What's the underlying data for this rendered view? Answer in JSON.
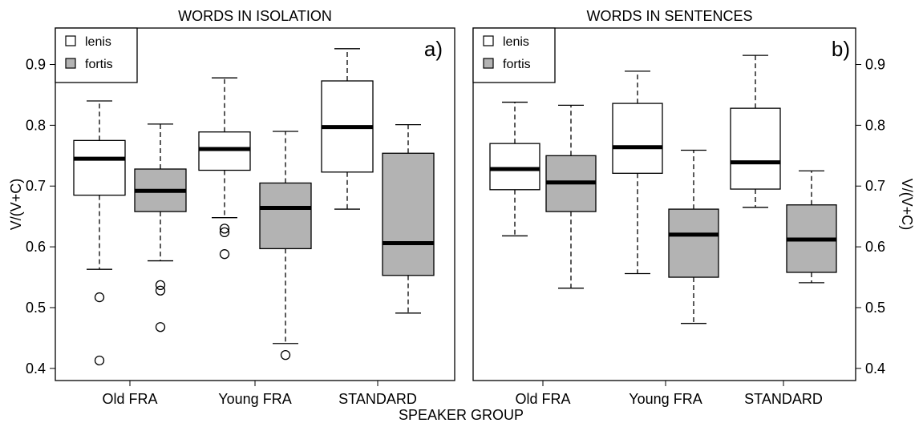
{
  "xlabel": "SPEAKER GROUP",
  "ylabel_left": "V/(V+C)",
  "ylabel_right": "V/(V+C)",
  "colors": {
    "lenis": "#ffffff",
    "fortis": "#b3b3b3"
  },
  "chart_data": [
    {
      "type": "boxplot",
      "title": "WORDS IN ISOLATION",
      "panel_label": "a)",
      "ylim": [
        0.38,
        0.96
      ],
      "yticks": [
        0.4,
        0.5,
        0.6,
        0.7,
        0.8,
        0.9
      ],
      "categories": [
        "Old FRA",
        "Young FRA",
        "STANDARD"
      ],
      "legend": {
        "position": "top-left",
        "entries": [
          "lenis",
          "fortis"
        ]
      },
      "boxes": [
        {
          "group": "Old FRA",
          "series": "lenis",
          "whisker_low": 0.563,
          "q1": 0.685,
          "median": 0.745,
          "q3": 0.775,
          "whisker_high": 0.84,
          "outliers": [
            0.517,
            0.413
          ]
        },
        {
          "group": "Old FRA",
          "series": "fortis",
          "whisker_low": 0.577,
          "q1": 0.658,
          "median": 0.692,
          "q3": 0.728,
          "whisker_high": 0.802,
          "outliers": [
            0.537,
            0.528,
            0.468
          ]
        },
        {
          "group": "Young FRA",
          "series": "lenis",
          "whisker_low": 0.648,
          "q1": 0.726,
          "median": 0.761,
          "q3": 0.789,
          "whisker_high": 0.878,
          "outliers": [
            0.63,
            0.624,
            0.588
          ]
        },
        {
          "group": "Young FRA",
          "series": "fortis",
          "whisker_low": 0.441,
          "q1": 0.597,
          "median": 0.664,
          "q3": 0.705,
          "whisker_high": 0.79,
          "outliers": [
            0.422
          ]
        },
        {
          "group": "STANDARD",
          "series": "lenis",
          "whisker_low": 0.662,
          "q1": 0.723,
          "median": 0.797,
          "q3": 0.873,
          "whisker_high": 0.926,
          "outliers": []
        },
        {
          "group": "STANDARD",
          "series": "fortis",
          "whisker_low": 0.491,
          "q1": 0.553,
          "median": 0.606,
          "q3": 0.754,
          "whisker_high": 0.801,
          "outliers": []
        }
      ]
    },
    {
      "type": "boxplot",
      "title": "WORDS IN SENTENCES",
      "panel_label": "b)",
      "ylim": [
        0.38,
        0.96
      ],
      "yticks": [
        0.4,
        0.5,
        0.6,
        0.7,
        0.8,
        0.9
      ],
      "categories": [
        "Old FRA",
        "Young FRA",
        "STANDARD"
      ],
      "legend": {
        "position": "top-left",
        "entries": [
          "lenis",
          "fortis"
        ]
      },
      "boxes": [
        {
          "group": "Old FRA",
          "series": "lenis",
          "whisker_low": 0.618,
          "q1": 0.694,
          "median": 0.728,
          "q3": 0.77,
          "whisker_high": 0.838,
          "outliers": []
        },
        {
          "group": "Old FRA",
          "series": "fortis",
          "whisker_low": 0.532,
          "q1": 0.658,
          "median": 0.706,
          "q3": 0.75,
          "whisker_high": 0.833,
          "outliers": []
        },
        {
          "group": "Young FRA",
          "series": "lenis",
          "whisker_low": 0.556,
          "q1": 0.721,
          "median": 0.764,
          "q3": 0.836,
          "whisker_high": 0.889,
          "outliers": []
        },
        {
          "group": "Young FRA",
          "series": "fortis",
          "whisker_low": 0.474,
          "q1": 0.55,
          "median": 0.62,
          "q3": 0.662,
          "whisker_high": 0.759,
          "outliers": []
        },
        {
          "group": "STANDARD",
          "series": "lenis",
          "whisker_low": 0.665,
          "q1": 0.695,
          "median": 0.739,
          "q3": 0.828,
          "whisker_high": 0.915,
          "outliers": []
        },
        {
          "group": "STANDARD",
          "series": "fortis",
          "whisker_low": 0.541,
          "q1": 0.558,
          "median": 0.612,
          "q3": 0.669,
          "whisker_high": 0.725,
          "outliers": []
        }
      ]
    }
  ]
}
